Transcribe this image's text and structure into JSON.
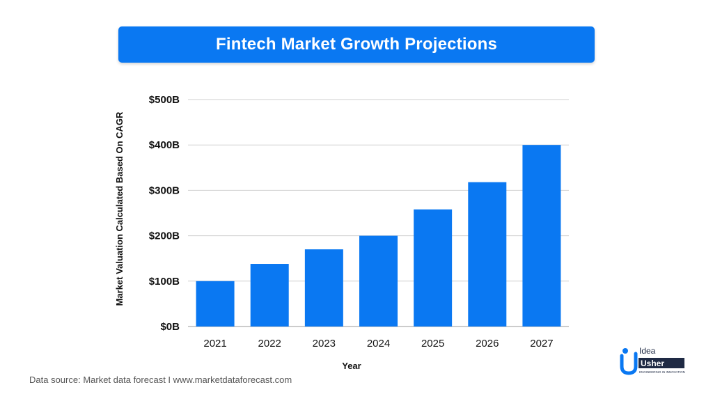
{
  "chart_data": {
    "type": "bar",
    "title": "Fintech Market Growth Projections",
    "xlabel": "Year",
    "ylabel": "Market Valuation Calculated Based On CAGR",
    "categories": [
      "2021",
      "2022",
      "2023",
      "2024",
      "2025",
      "2026",
      "2027"
    ],
    "values": [
      100,
      138,
      170,
      200,
      258,
      318,
      400
    ],
    "ylim": [
      0,
      500
    ],
    "yticks": [
      0,
      100,
      200,
      300,
      400,
      500
    ],
    "ytick_labels": [
      "$0B",
      "$100B",
      "$200B",
      "$300B",
      "$400B",
      "$500B"
    ],
    "bar_color": "#0a78f2",
    "grid": true,
    "legend": "none"
  },
  "footer": {
    "source": "Data source: Market data forecast I www.marketdataforecast.com"
  },
  "logo": {
    "word1": "Idea",
    "word2": "Usher",
    "tagline": "ENGINEERING IN INNOVATION",
    "primary_color": "#0a78f2",
    "dark_color": "#1f2a44"
  }
}
